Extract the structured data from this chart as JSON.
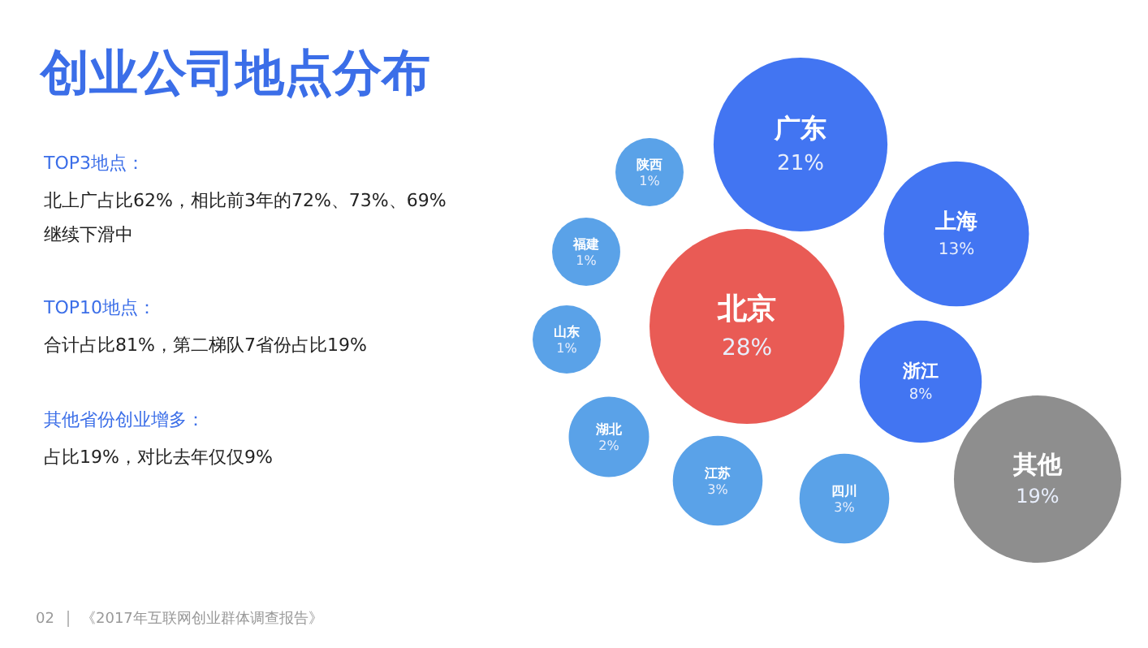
{
  "chart_data": {
    "type": "other",
    "title": "创业公司地点分布",
    "categories": [
      "北京",
      "广东",
      "其他",
      "上海",
      "浙江",
      "江苏",
      "四川",
      "湖北",
      "山东",
      "福建",
      "陕西"
    ],
    "values": [
      28,
      21,
      19,
      13,
      8,
      3,
      3,
      2,
      1,
      1,
      1
    ],
    "value_labels": [
      "28%",
      "21%",
      "19%",
      "13%",
      "8%",
      "3%",
      "3%",
      "2%",
      "1%",
      "1%",
      "1%"
    ],
    "colors": [
      "#e95b55",
      "#4275f2",
      "#8e8e8e",
      "#4275f2",
      "#4275f2",
      "#5aa2e8",
      "#5aa2e8",
      "#5aa2e8",
      "#5aa2e8",
      "#5aa2e8",
      "#5aa2e8"
    ],
    "annotations": [
      "TOP3地点：",
      "北上广占比62%，相比前3年的72%、73%、69%",
      "继续下滑中",
      "TOP10地点：",
      "合计占比81%，第二梯队7省份占比19%",
      "其他省份创业增多：",
      "占比19%，对比去年仅仅9%",
      "02",
      "《2017年互联网创业群体调查报告》"
    ]
  }
}
